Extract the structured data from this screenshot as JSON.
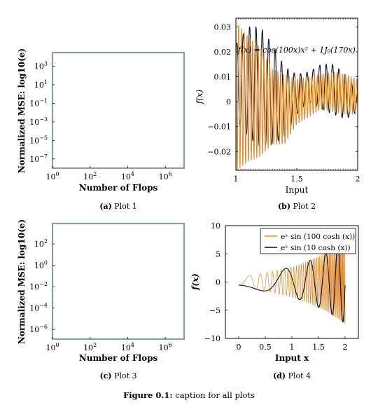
{
  "figure_caption": {
    "label": "Figure 0.1:",
    "text": "caption for all plots"
  },
  "colors": {
    "black": "#111111",
    "orange": "#e08a2c",
    "light_orange": "#e8b070",
    "frame_teal": "#8aa0a0"
  },
  "chart_data": [
    {
      "id": "plot1",
      "type": "line",
      "caption_label": "(a)",
      "caption_text": "Plot 1",
      "xlabel": "Number of Flops",
      "ylabel": "Normalized MSE: log10(e)",
      "x_scale": "log",
      "y_scale": "log",
      "xlim": [
        1,
        10000000
      ],
      "ylim": [
        1e-08,
        30000
      ],
      "x_ticks": [
        {
          "v": 1,
          "base": "10",
          "exp": "0"
        },
        {
          "v": 100,
          "base": "10",
          "exp": "2"
        },
        {
          "v": 10000,
          "base": "10",
          "exp": "4"
        },
        {
          "v": 1000000,
          "base": "10",
          "exp": "6"
        }
      ],
      "y_ticks": [
        {
          "v": 1000,
          "base": "10",
          "exp": "3"
        },
        {
          "v": 10,
          "base": "10",
          "exp": "1"
        },
        {
          "v": 0.1,
          "base": "10",
          "exp": "−1"
        },
        {
          "v": 0.001,
          "base": "10",
          "exp": "−3"
        },
        {
          "v": 1e-05,
          "base": "10",
          "exp": "−5"
        },
        {
          "v": 1e-07,
          "base": "10",
          "exp": "−7"
        }
      ],
      "series": []
    },
    {
      "id": "plot2",
      "type": "line",
      "caption_label": "(b)",
      "caption_text": "Plot 2",
      "title": "f(x) = cos(100x)x² + 1J₀(170x)",
      "xlabel": "Input",
      "ylabel": "f(x)",
      "xlim": [
        1,
        2
      ],
      "ylim": [
        -0.0275,
        0.0335
      ],
      "x_ticks": [
        {
          "v": 1,
          "label": "1"
        },
        {
          "v": 1.5,
          "label": "1.5"
        },
        {
          "v": 2,
          "label": "2"
        }
      ],
      "y_ticks": [
        {
          "v": 0.03,
          "label": "0.03"
        },
        {
          "v": 0.02,
          "label": "0.02"
        },
        {
          "v": 0.01,
          "label": "0.01"
        },
        {
          "v": 0,
          "label": "0"
        },
        {
          "v": -0.01,
          "label": "−0.01"
        },
        {
          "v": -0.02,
          "label": "−0.02"
        }
      ],
      "series": [
        {
          "id": "black",
          "color": "#111111",
          "kind": "modulated_sine",
          "freq": 100,
          "x": [
            1.0,
            1.1,
            1.2,
            1.3,
            1.4,
            1.5,
            1.6,
            1.7,
            1.8,
            1.9,
            2.0
          ],
          "center": [
            0.008,
            0.008,
            0.006,
            0.003,
            0.0,
            0.003,
            0.006,
            0.006,
            0.005,
            0.002,
            0.0
          ],
          "amp": [
            0.015,
            0.022,
            0.024,
            0.02,
            0.014,
            0.008,
            0.006,
            0.009,
            0.01,
            0.009,
            0.004
          ]
        },
        {
          "id": "orange",
          "color": "#e08a2c",
          "kind": "modulated_sine",
          "freq": 170,
          "x": [
            1.0,
            1.1,
            1.2,
            1.3,
            1.4,
            1.5,
            1.6,
            1.7,
            1.8,
            1.9,
            2.0
          ],
          "center": [
            0.002,
            0.001,
            0.0,
            -0.002,
            -0.003,
            0.0,
            0.002,
            0.004,
            0.004,
            0.003,
            0.002
          ],
          "amp": [
            0.03,
            0.025,
            0.022,
            0.015,
            0.014,
            0.009,
            0.008,
            0.007,
            0.008,
            0.008,
            0.007
          ]
        }
      ]
    },
    {
      "id": "plot3",
      "type": "line",
      "caption_label": "(c)",
      "caption_text": "Plot 3",
      "xlabel": "Number of Flops",
      "ylabel": "Normalized MSE: log10(e)",
      "x_scale": "log",
      "y_scale": "log",
      "xlim": [
        1,
        10000000
      ],
      "ylim": [
        1.25e-07,
        8000
      ],
      "x_ticks": [
        {
          "v": 1,
          "base": "10",
          "exp": "0"
        },
        {
          "v": 100,
          "base": "10",
          "exp": "2"
        },
        {
          "v": 10000,
          "base": "10",
          "exp": "4"
        },
        {
          "v": 1000000,
          "base": "10",
          "exp": "6"
        }
      ],
      "y_ticks": [
        {
          "v": 100,
          "base": "10",
          "exp": "2"
        },
        {
          "v": 1,
          "base": "10",
          "exp": "0"
        },
        {
          "v": 0.01,
          "base": "10",
          "exp": "−2"
        },
        {
          "v": 0.0001,
          "base": "10",
          "exp": "−4"
        },
        {
          "v": 1e-06,
          "base": "10",
          "exp": "−6"
        }
      ],
      "series": []
    },
    {
      "id": "plot4",
      "type": "line",
      "caption_label": "(d)",
      "caption_text": "Plot 4",
      "xlabel": "Input x",
      "ylabel": "f(x)",
      "xlim": [
        -0.25,
        2.25
      ],
      "ylim": [
        -10,
        10
      ],
      "x_ticks": [
        {
          "v": 0,
          "label": "0"
        },
        {
          "v": 0.5,
          "label": "0.5"
        },
        {
          "v": 1,
          "label": "1"
        },
        {
          "v": 1.5,
          "label": "1.5"
        },
        {
          "v": 2,
          "label": "2"
        }
      ],
      "y_ticks": [
        {
          "v": 10,
          "label": "10"
        },
        {
          "v": 5,
          "label": "5"
        },
        {
          "v": 0,
          "label": "0"
        },
        {
          "v": -5,
          "label": "−5"
        },
        {
          "v": -10,
          "label": "−10"
        }
      ],
      "legend_position": "top-right",
      "series": [
        {
          "id": "fast",
          "name": "eˣ sin (100 cosh (x))",
          "color": "#e08a2c",
          "kind": "function",
          "fn": "exp_sin_cosh",
          "k": 100,
          "x_range": [
            0,
            2
          ]
        },
        {
          "id": "slow",
          "name": "eˣ sin (10 cosh (x))",
          "color": "#111111",
          "kind": "function",
          "fn": "exp_sin_cosh",
          "k": 10,
          "x_range": [
            0,
            2
          ]
        }
      ]
    }
  ]
}
